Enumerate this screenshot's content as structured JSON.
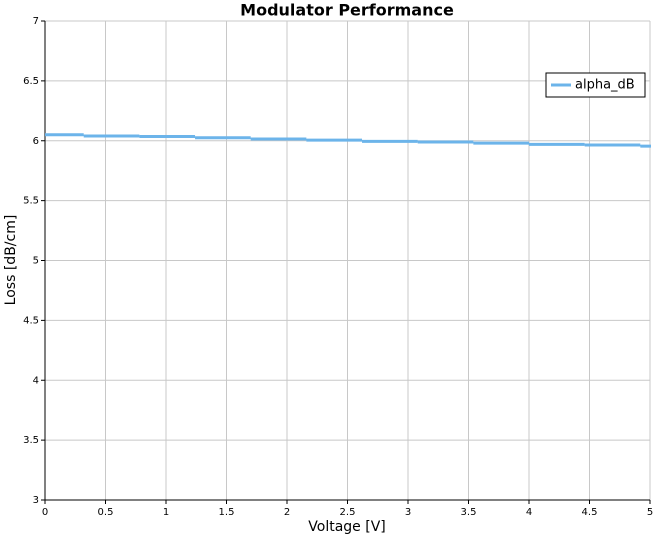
{
  "chart_data": {
    "type": "line",
    "step": "post",
    "title": "Modulator Performance",
    "x_label": "Voltage [V]",
    "y_label": "Loss [dB/cm]",
    "x": [
      0,
      0.32,
      0.78,
      1.24,
      1.7,
      2.16,
      2.62,
      3.08,
      3.54,
      4.0,
      4.46,
      4.92,
      5
    ],
    "series": [
      {
        "name": "alpha_dB",
        "color": "#6cb4ea",
        "values": [
          6.05,
          6.04,
          6.035,
          6.025,
          6.015,
          6.005,
          5.995,
          5.99,
          5.98,
          5.97,
          5.965,
          5.955,
          5.955
        ]
      }
    ],
    "xlim": [
      0,
      5
    ],
    "ylim": [
      3,
      7
    ],
    "xticks": [
      0,
      0.5,
      1,
      1.5,
      2,
      2.5,
      3,
      3.5,
      4,
      4.5,
      5
    ],
    "yticks": [
      3,
      3.5,
      4,
      4.5,
      5,
      5.5,
      6,
      6.5,
      7
    ],
    "grid": true,
    "legend": "upper-right"
  }
}
